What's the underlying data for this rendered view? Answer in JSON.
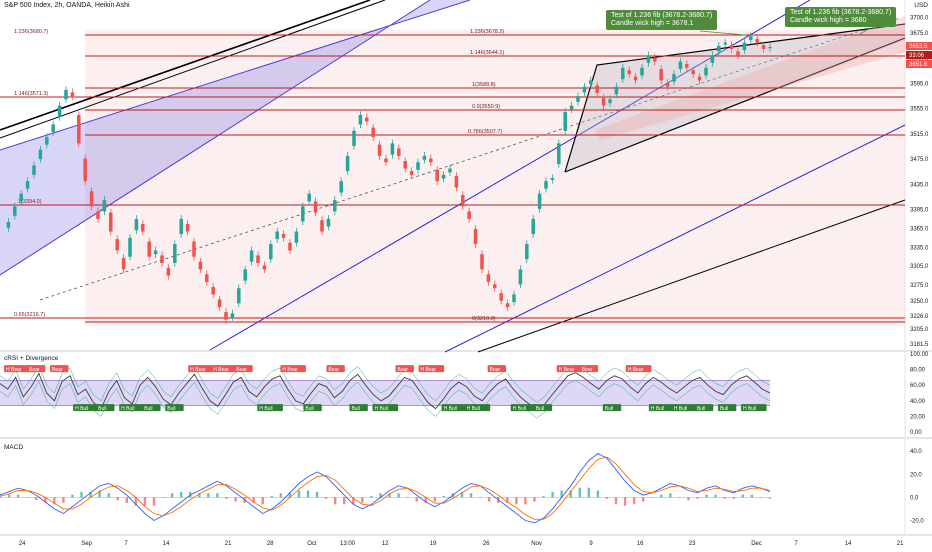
{
  "header": {
    "symbol": "S&P 500 Index, 2h, OANDA, Heikin Ashi",
    "currency": "USD"
  },
  "panes": {
    "rsi_label": "cRSI + Divergence",
    "macd_label": "MACD"
  },
  "callouts": [
    {
      "line1": "Test of 1.236 fib (3678.2-3680.7)",
      "line2": "Candle wick high = 3678.1"
    },
    {
      "line1": "Test of 1.236 fib (3678.2-3680.7)",
      "line2": "Candle wick high = 3680"
    }
  ],
  "colors": {
    "bull": "#26a69a",
    "bear": "#ef5350",
    "fib_line": "#c2181b",
    "channel_blue": "#2626d9",
    "callout": "#4e8b3a",
    "rsi_band": "#b6a6e8"
  },
  "chart_data": [
    {
      "type": "candlestick",
      "title": "S&P 500 Index, 2h, OANDA, Heikin Ashi",
      "y_ticks": [
        3700,
        3675,
        3635,
        3595,
        3555,
        3515,
        3475,
        3435,
        3395,
        3365,
        3335,
        3305,
        3275,
        3250,
        3226,
        3205,
        3181.5
      ],
      "y_tick_labels": [
        "3700.0",
        "3675.0",
        "3635.0",
        "3595.0",
        "3555.0",
        "3515.0",
        "3475.0",
        "3435.0",
        "3395.0",
        "3365.0",
        "3335.0",
        "3305.0",
        "3275.0",
        "3250.0",
        "3226.0",
        "3205.0",
        "3181.5"
      ],
      "price_tags": [
        "3653.5",
        "33:06",
        "3651.6"
      ],
      "x_ticks": [
        "24",
        "Sep",
        "7",
        "14",
        "21",
        "28",
        "Oct",
        "13:00",
        "12",
        "19",
        "26",
        "Nov",
        "9",
        "16",
        "23",
        "Dec",
        "7",
        "14",
        "21"
      ],
      "fib_levels": [
        {
          "label": "1.236(3680.7)",
          "value": 3680.7
        },
        {
          "label": "1.236(3678.2)",
          "value": 3678.2
        },
        {
          "label": "1.146(3571.3)",
          "value": 3571.3
        },
        {
          "label": "1.146(3644.1)",
          "value": 3644.1
        },
        {
          "label": "1(3588.8)",
          "value": 3588.8
        },
        {
          "label": "0.9(3550.9)",
          "value": 3550.9
        },
        {
          "label": "0.786(3507.7)",
          "value": 3507.7
        },
        {
          "label": "1(3394.0)",
          "value": 3394.0
        },
        {
          "label": "0.65(3216.7)",
          "value": 3216.7
        },
        {
          "label": "0(3210.0)",
          "value": 3210.0
        }
      ],
      "close_path": [
        3360,
        3375,
        3400,
        3420,
        3440,
        3465,
        3490,
        3510,
        3530,
        3560,
        3585,
        3575,
        3500,
        3440,
        3400,
        3380,
        3410,
        3360,
        3330,
        3300,
        3350,
        3380,
        3360,
        3320,
        3330,
        3310,
        3290,
        3340,
        3380,
        3360,
        3320,
        3300,
        3280,
        3260,
        3240,
        3220,
        3230,
        3270,
        3300,
        3330,
        3310,
        3300,
        3340,
        3360,
        3350,
        3330,
        3360,
        3400,
        3420,
        3390,
        3360,
        3380,
        3410,
        3440,
        3480,
        3520,
        3545,
        3535,
        3510,
        3480,
        3470,
        3500,
        3480,
        3460,
        3450,
        3470,
        3480,
        3470,
        3440,
        3450,
        3460,
        3430,
        3400,
        3380,
        3340,
        3300,
        3280,
        3270,
        3250,
        3240,
        3260,
        3300,
        3340,
        3380,
        3420,
        3440,
        3445,
        3500,
        3550,
        3560,
        3575,
        3590,
        3600,
        3580,
        3560,
        3570,
        3590,
        3620,
        3610,
        3600,
        3620,
        3640,
        3630,
        3600,
        3590,
        3610,
        3630,
        3620,
        3610,
        3600,
        3620,
        3640,
        3655,
        3660,
        3650,
        3640,
        3660,
        3670,
        3660,
        3650,
        3653
      ]
    },
    {
      "type": "line",
      "title": "cRSI + Divergence",
      "y_ticks": [
        100,
        80,
        60,
        40,
        20,
        0
      ],
      "y_tick_labels": [
        "100.00",
        "80.00",
        "60.00",
        "40.00",
        "20.00",
        "0.00"
      ],
      "band": [
        34,
        66
      ],
      "markers": [
        {
          "text": "H Bear",
          "kind": "bear"
        },
        {
          "text": "Bear",
          "kind": "bear"
        },
        {
          "text": "Bear",
          "kind": "bear"
        },
        {
          "text": "H Bull",
          "kind": "bull"
        },
        {
          "text": "Bull",
          "kind": "bull"
        },
        {
          "text": "H Bull",
          "kind": "bull"
        },
        {
          "text": "Bull",
          "kind": "bull"
        },
        {
          "text": "Bull",
          "kind": "bull"
        },
        {
          "text": "H Bear",
          "kind": "bear"
        },
        {
          "text": "H Bear",
          "kind": "bear"
        },
        {
          "text": "Bear",
          "kind": "bear"
        },
        {
          "text": "H Bull",
          "kind": "bull"
        },
        {
          "text": "H Bear",
          "kind": "bear"
        },
        {
          "text": "Bull",
          "kind": "bull"
        },
        {
          "text": "Bear",
          "kind": "bear"
        },
        {
          "text": "Bull",
          "kind": "bull"
        },
        {
          "text": "H Bull",
          "kind": "bull"
        },
        {
          "text": "Bear",
          "kind": "bear"
        },
        {
          "text": "H Bear",
          "kind": "bear"
        },
        {
          "text": "H Bull",
          "kind": "bull"
        },
        {
          "text": "H Bull",
          "kind": "bull"
        },
        {
          "text": "Bear",
          "kind": "bear"
        },
        {
          "text": "H Bull",
          "kind": "bull"
        },
        {
          "text": "Bull",
          "kind": "bull"
        },
        {
          "text": "H Bear",
          "kind": "bear"
        },
        {
          "text": "Bear",
          "kind": "bear"
        },
        {
          "text": "Bull",
          "kind": "bull"
        },
        {
          "text": "H Bear",
          "kind": "bear"
        },
        {
          "text": "H Bull",
          "kind": "bull"
        },
        {
          "text": "H Bull",
          "kind": "bull"
        },
        {
          "text": "Bull",
          "kind": "bull"
        },
        {
          "text": "Bull",
          "kind": "bull"
        },
        {
          "text": "H Bull",
          "kind": "bull"
        }
      ],
      "values": [
        62,
        55,
        70,
        45,
        58,
        75,
        50,
        40,
        65,
        72,
        48,
        55,
        38,
        30,
        52,
        66,
        44,
        36,
        60,
        70,
        58,
        42,
        35,
        50,
        62,
        74,
        56,
        40,
        33,
        48,
        64,
        70,
        52,
        45,
        58,
        68,
        72,
        55,
        40,
        36,
        50,
        62,
        58,
        44,
        52,
        66,
        74,
        60,
        48,
        40,
        46,
        58,
        70,
        66,
        52,
        38,
        30,
        42,
        56,
        64,
        58,
        46,
        40,
        52,
        62,
        68,
        55,
        44,
        36,
        28,
        35,
        48,
        60,
        72,
        76,
        70,
        62,
        55,
        66,
        72,
        68,
        58,
        50,
        62,
        70,
        64,
        56,
        50,
        58,
        66,
        70,
        60,
        52,
        48,
        60,
        68,
        72,
        64,
        55,
        50
      ]
    },
    {
      "type": "line",
      "title": "MACD",
      "y_ticks": [
        40,
        20,
        0,
        -20
      ],
      "y_tick_labels": [
        "40.0",
        "20.0",
        "0.0",
        "-20.0"
      ],
      "series": [
        {
          "name": "",
          "values": [
            2,
            5,
            8,
            6,
            2,
            -4,
            -10,
            -14,
            -8,
            -2,
            4,
            10,
            12,
            8,
            2,
            -6,
            -14,
            -20,
            -16,
            -10,
            -4,
            2,
            6,
            10,
            14,
            10,
            4,
            -2,
            -8,
            -14,
            -10,
            -4,
            4,
            12,
            18,
            22,
            18,
            10,
            2,
            -6,
            -10,
            -6,
            0,
            6,
            10,
            8,
            2,
            -4,
            -8,
            -4,
            2,
            8,
            12,
            10,
            4,
            -2,
            -8,
            -14,
            -20,
            -22,
            -18,
            -10,
            0,
            10,
            22,
            32,
            38,
            34,
            24,
            14,
            6,
            2,
            4,
            8,
            12,
            10,
            6,
            4,
            8,
            10,
            6,
            4,
            8,
            10,
            8,
            5
          ]
        },
        {
          "name": "",
          "values": [
            1,
            3,
            6,
            6,
            4,
            0,
            -5,
            -10,
            -10,
            -6,
            0,
            5,
            9,
            10,
            6,
            0,
            -8,
            -14,
            -16,
            -13,
            -8,
            -2,
            3,
            7,
            11,
            11,
            7,
            2,
            -4,
            -9,
            -11,
            -7,
            0,
            7,
            13,
            18,
            19,
            15,
            7,
            -1,
            -6,
            -7,
            -3,
            3,
            7,
            8,
            5,
            0,
            -5,
            -5,
            -1,
            4,
            9,
            10,
            7,
            2,
            -4,
            -9,
            -15,
            -19,
            -19,
            -14,
            -5,
            5,
            15,
            25,
            33,
            35,
            29,
            20,
            11,
            5,
            4,
            6,
            9,
            10,
            8,
            5,
            6,
            8,
            7,
            5,
            6,
            8,
            8,
            6
          ]
        }
      ]
    }
  ]
}
